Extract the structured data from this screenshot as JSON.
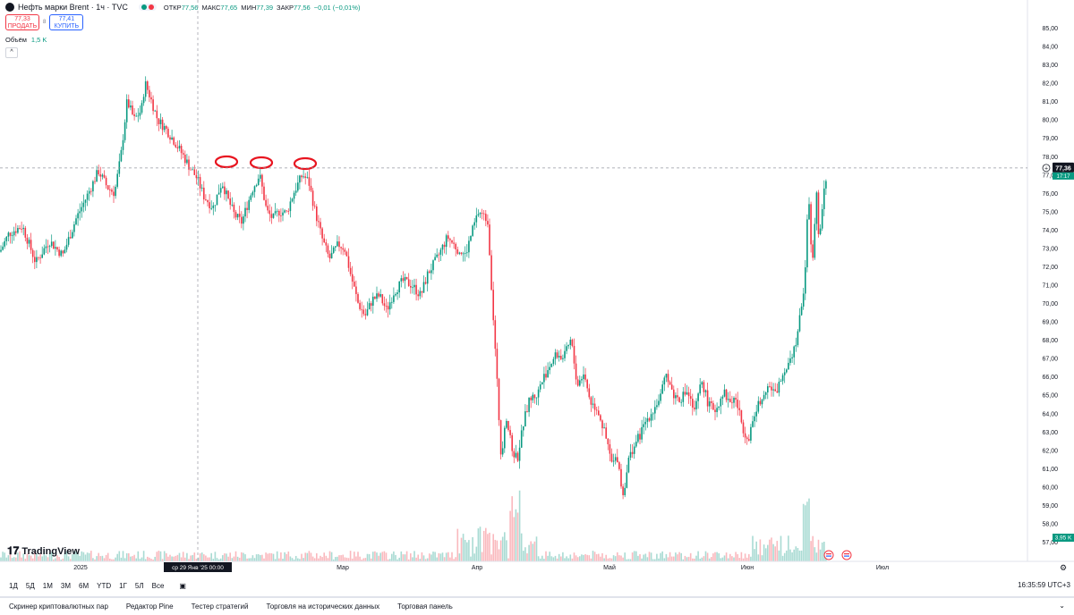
{
  "header": {
    "title": "Нефть марки Brent · 1ч · TVC",
    "ohlc": [
      {
        "label": "ОТКР",
        "value": "77,56"
      },
      {
        "label": "МАКС",
        "value": "77,65"
      },
      {
        "label": "МИН",
        "value": "77,39"
      },
      {
        "label": "ЗАКР",
        "value": "77,56"
      },
      {
        "label": "",
        "value": "−0,01 (−0,01%)"
      }
    ],
    "sell_price": "77,33",
    "sell_label": "ПРОДАТЬ",
    "spread": "8",
    "buy_price": "77,41",
    "buy_label": "КУПИТЬ",
    "volume_label": "Объём",
    "volume_value": "1,5 K",
    "collapse_icon": "chevron-up-icon"
  },
  "logo": "TradingView",
  "colors": {
    "up": "#089981",
    "down": "#f23645",
    "accent": "#2962ff",
    "price_tag": "#131722"
  },
  "chart_data": {
    "type": "candlestick",
    "instrument": "Нефть марки Brent",
    "interval": "1ч",
    "source": "TVC",
    "ylim": [
      57,
      85
    ],
    "y_ticks": [
      "85,00",
      "84,00",
      "83,00",
      "82,00",
      "81,00",
      "80,00",
      "79,00",
      "78,00",
      "77,00",
      "76,00",
      "75,00",
      "74,00",
      "73,00",
      "72,00",
      "71,00",
      "70,00",
      "69,00",
      "68,00",
      "67,00",
      "66,00",
      "65,00",
      "64,00",
      "63,00",
      "62,00",
      "61,00",
      "60,00",
      "59,00",
      "58,00",
      "57,00"
    ],
    "x_ticks": [
      "2025",
      "Мар",
      "Апр",
      "Май",
      "Июн",
      "Июл"
    ],
    "cursor_label": "ср 29 Янв '25   00:00",
    "last_price": "77,36",
    "last_price_secondary": "17:17",
    "volume_last": "3,95 K",
    "price_path": [
      [
        0,
        72.8
      ],
      [
        10,
        73.8
      ],
      [
        25,
        74.2
      ],
      [
        40,
        72.2
      ],
      [
        55,
        73.4
      ],
      [
        70,
        72.6
      ],
      [
        85,
        74.6
      ],
      [
        95,
        75.6
      ],
      [
        110,
        77.2
      ],
      [
        120,
        76.3
      ],
      [
        128,
        76.0
      ],
      [
        135,
        78.0
      ],
      [
        142,
        81.0
      ],
      [
        150,
        80.0
      ],
      [
        158,
        80.5
      ],
      [
        162,
        82.0
      ],
      [
        168,
        81.2
      ],
      [
        176,
        80.0
      ],
      [
        185,
        79.5
      ],
      [
        195,
        78.8
      ],
      [
        205,
        78.0
      ],
      [
        212,
        77.4
      ],
      [
        220,
        76.8
      ],
      [
        228,
        75.8
      ],
      [
        238,
        75.2
      ],
      [
        248,
        76.6
      ],
      [
        255,
        75.6
      ],
      [
        262,
        74.8
      ],
      [
        270,
        74.4
      ],
      [
        282,
        76.2
      ],
      [
        290,
        77.0
      ],
      [
        298,
        75.0
      ],
      [
        305,
        74.6
      ],
      [
        312,
        75.0
      ],
      [
        320,
        74.9
      ],
      [
        328,
        76.0
      ],
      [
        338,
        77.0
      ],
      [
        345,
        76.6
      ],
      [
        352,
        75.0
      ],
      [
        360,
        73.5
      ],
      [
        368,
        72.4
      ],
      [
        378,
        73.2
      ],
      [
        385,
        73.0
      ],
      [
        392,
        71.5
      ],
      [
        400,
        70.0
      ],
      [
        408,
        69.3
      ],
      [
        416,
        70.2
      ],
      [
        424,
        70.4
      ],
      [
        432,
        69.6
      ],
      [
        440,
        70.6
      ],
      [
        450,
        71.2
      ],
      [
        460,
        71.0
      ],
      [
        470,
        70.4
      ],
      [
        478,
        71.6
      ],
      [
        488,
        72.4
      ],
      [
        500,
        73.6
      ],
      [
        510,
        73.0
      ],
      [
        520,
        72.6
      ],
      [
        528,
        74.0
      ],
      [
        535,
        75.0
      ],
      [
        545,
        74.5
      ],
      [
        550,
        70.2
      ],
      [
        555,
        66.0
      ],
      [
        560,
        61.5
      ],
      [
        565,
        64.0
      ],
      [
        572,
        62.0
      ],
      [
        578,
        61.5
      ],
      [
        585,
        63.5
      ],
      [
        592,
        64.8
      ],
      [
        600,
        65.0
      ],
      [
        608,
        66.0
      ],
      [
        615,
        66.7
      ],
      [
        622,
        67.2
      ],
      [
        630,
        67.0
      ],
      [
        638,
        68.0
      ],
      [
        645,
        65.5
      ],
      [
        652,
        66.2
      ],
      [
        660,
        64.6
      ],
      [
        668,
        64.2
      ],
      [
        676,
        62.8
      ],
      [
        684,
        61.2
      ],
      [
        690,
        61.6
      ],
      [
        696,
        59.5
      ],
      [
        702,
        61.4
      ],
      [
        708,
        62.2
      ],
      [
        715,
        62.8
      ],
      [
        722,
        63.6
      ],
      [
        730,
        64.2
      ],
      [
        738,
        64.9
      ],
      [
        745,
        66.2
      ],
      [
        752,
        65.0
      ],
      [
        760,
        64.8
      ],
      [
        768,
        65.2
      ],
      [
        776,
        64.0
      ],
      [
        784,
        65.8
      ],
      [
        792,
        64.4
      ],
      [
        800,
        64.2
      ],
      [
        808,
        65.2
      ],
      [
        815,
        64.6
      ],
      [
        822,
        64.8
      ],
      [
        830,
        63.2
      ],
      [
        836,
        62.6
      ],
      [
        842,
        63.8
      ],
      [
        850,
        64.8
      ],
      [
        858,
        65.6
      ],
      [
        866,
        65.0
      ],
      [
        872,
        65.8
      ],
      [
        880,
        66.8
      ],
      [
        888,
        67.6
      ],
      [
        895,
        69.5
      ],
      [
        899,
        71.2
      ],
      [
        903,
        76.2
      ],
      [
        906,
        73.5
      ],
      [
        909,
        72.2
      ],
      [
        912,
        76.8
      ],
      [
        915,
        73.0
      ],
      [
        918,
        75.0
      ],
      [
        921,
        76.5
      ],
      [
        925,
        77.3
      ]
    ]
  },
  "bottom_toolbar": {
    "ranges": [
      "1Д",
      "5Д",
      "1М",
      "3М",
      "6М",
      "YTD",
      "1Г",
      "5Л",
      "Все"
    ],
    "compare_icon": "calendar-range-icon",
    "clock": "16:35:59 UTC+3"
  },
  "tabs": [
    "Скринер криптовалютных пар",
    "Редактор Pine",
    "Тестер стратегий",
    "Торговля на исторических данных",
    "Торговая панель"
  ],
  "tabs_toggle_icon": "chevron-down-icon"
}
